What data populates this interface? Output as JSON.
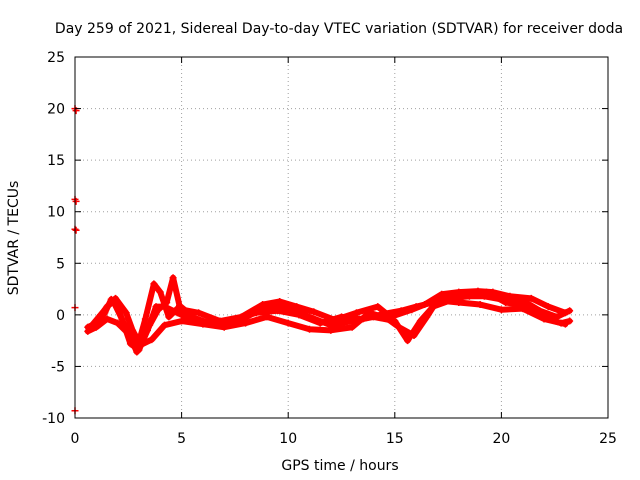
{
  "chart_data": {
    "type": "scatter",
    "title": "Day 259 of 2021, Sidereal Day-to-day VTEC variation (SDTVAR) for receiver doda",
    "xlabel": "GPS time / hours",
    "ylabel": "SDTVAR / TECUs",
    "xlim": [
      0,
      25
    ],
    "ylim": [
      -10,
      25
    ],
    "xticks": [
      0,
      5,
      10,
      15,
      20,
      25
    ],
    "yticks": [
      -10,
      -5,
      0,
      5,
      10,
      15,
      20,
      25
    ],
    "grid": true,
    "series": [
      {
        "name": "SDTVAR",
        "color": "#ff0000",
        "marker": "+",
        "outliers": [
          [
            0.0,
            20.0
          ],
          [
            0.05,
            19.8
          ],
          [
            0.0,
            11.2
          ],
          [
            0.05,
            11.0
          ],
          [
            0.0,
            8.3
          ],
          [
            0.05,
            8.2
          ],
          [
            0.0,
            0.7
          ],
          [
            0.0,
            -9.3
          ]
        ],
        "tracks": [
          [
            [
              0.6,
              -1.2
            ],
            [
              1.0,
              -0.8
            ],
            [
              1.4,
              0.2
            ],
            [
              1.7,
              1.5
            ],
            [
              2.0,
              0.8
            ],
            [
              2.3,
              -1.0
            ],
            [
              2.6,
              -2.8
            ],
            [
              3.0,
              -3.4
            ],
            [
              3.4,
              -1.5
            ],
            [
              3.8,
              0.8
            ],
            [
              4.2,
              0.8
            ],
            [
              4.8,
              0.2
            ],
            [
              5.5,
              -0.5
            ],
            [
              6.5,
              -0.8
            ],
            [
              7.5,
              -0.4
            ],
            [
              8.5,
              0.2
            ],
            [
              9.5,
              0.4
            ],
            [
              10.5,
              0.0
            ],
            [
              11.5,
              -0.8
            ],
            [
              12.5,
              -0.2
            ],
            [
              13.5,
              -0.4
            ],
            [
              14.5,
              0.1
            ],
            [
              15.3,
              0.4
            ],
            [
              16.0,
              0.8
            ],
            [
              16.8,
              1.2
            ],
            [
              17.5,
              1.6
            ],
            [
              18.5,
              1.8
            ],
            [
              19.2,
              1.8
            ],
            [
              20.0,
              1.5
            ],
            [
              21.0,
              1.4
            ],
            [
              21.8,
              0.4
            ],
            [
              22.6,
              -0.2
            ],
            [
              23.2,
              0.4
            ]
          ],
          [
            [
              0.7,
              -1.4
            ],
            [
              1.1,
              -0.4
            ],
            [
              1.5,
              0.8
            ],
            [
              1.8,
              1.3
            ],
            [
              2.2,
              -0.4
            ],
            [
              2.6,
              -2.2
            ],
            [
              2.9,
              -3.6
            ],
            [
              3.1,
              -2.8
            ],
            [
              3.5,
              -1.0
            ],
            [
              3.9,
              0.5
            ],
            [
              4.3,
              1.2
            ],
            [
              4.6,
              3.6
            ],
            [
              4.9,
              0.9
            ],
            [
              5.6,
              -0.3
            ],
            [
              6.6,
              -1.0
            ],
            [
              7.6,
              -0.7
            ],
            [
              8.6,
              0.4
            ],
            [
              9.4,
              0.9
            ],
            [
              10.2,
              0.6
            ],
            [
              11.0,
              -0.2
            ],
            [
              12.0,
              -1.0
            ],
            [
              13.0,
              -0.6
            ],
            [
              14.0,
              -0.2
            ],
            [
              15.0,
              -0.6
            ],
            [
              15.6,
              -2.5
            ],
            [
              16.2,
              -0.6
            ],
            [
              16.8,
              0.8
            ],
            [
              17.6,
              1.4
            ],
            [
              18.6,
              2.0
            ],
            [
              19.3,
              2.2
            ],
            [
              20.2,
              1.2
            ],
            [
              21.2,
              0.9
            ],
            [
              22.0,
              -0.3
            ],
            [
              22.8,
              -0.8
            ],
            [
              23.2,
              -0.6
            ]
          ],
          [
            [
              0.8,
              -1.0
            ],
            [
              1.2,
              0.0
            ],
            [
              1.6,
              1.0
            ],
            [
              1.9,
              1.6
            ],
            [
              2.4,
              0.2
            ],
            [
              2.7,
              -1.5
            ],
            [
              3.0,
              -2.6
            ],
            [
              3.3,
              -0.4
            ],
            [
              3.7,
              3.0
            ],
            [
              4.0,
              2.2
            ],
            [
              4.4,
              -0.2
            ],
            [
              4.8,
              0.6
            ],
            [
              5.8,
              0.2
            ],
            [
              6.8,
              -0.6
            ],
            [
              7.8,
              -0.2
            ],
            [
              8.8,
              1.0
            ],
            [
              9.6,
              1.3
            ],
            [
              10.4,
              0.8
            ],
            [
              11.2,
              0.3
            ],
            [
              12.2,
              -0.5
            ],
            [
              13.2,
              0.2
            ],
            [
              14.2,
              0.8
            ],
            [
              14.8,
              -0.2
            ],
            [
              15.8,
              0.5
            ],
            [
              16.4,
              1.0
            ],
            [
              17.2,
              2.0
            ],
            [
              18.0,
              2.2
            ],
            [
              18.9,
              2.3
            ],
            [
              19.6,
              2.2
            ],
            [
              20.4,
              1.8
            ],
            [
              21.4,
              1.6
            ],
            [
              22.2,
              0.8
            ],
            [
              23.0,
              0.2
            ]
          ],
          [
            [
              0.6,
              -1.6
            ],
            [
              1.0,
              -1.2
            ],
            [
              1.5,
              -0.4
            ],
            [
              2.0,
              -0.8
            ],
            [
              2.5,
              -1.8
            ],
            [
              3.0,
              -3.0
            ],
            [
              3.6,
              -2.4
            ],
            [
              4.2,
              -1.0
            ],
            [
              5.0,
              -0.6
            ],
            [
              6.0,
              -0.9
            ],
            [
              7.0,
              -1.2
            ],
            [
              8.0,
              -0.8
            ],
            [
              9.0,
              -0.2
            ],
            [
              10.0,
              -0.8
            ],
            [
              11.0,
              -1.4
            ],
            [
              12.0,
              -1.5
            ],
            [
              13.0,
              -1.2
            ],
            [
              13.8,
              0.2
            ],
            [
              14.6,
              -0.3
            ],
            [
              15.2,
              -1.2
            ],
            [
              15.9,
              -2.0
            ],
            [
              16.5,
              -0.2
            ],
            [
              17.0,
              1.4
            ],
            [
              18.0,
              1.2
            ],
            [
              19.0,
              1.0
            ],
            [
              20.0,
              0.5
            ],
            [
              21.0,
              0.6
            ],
            [
              22.0,
              -0.4
            ],
            [
              23.0,
              -0.9
            ]
          ]
        ]
      }
    ]
  }
}
